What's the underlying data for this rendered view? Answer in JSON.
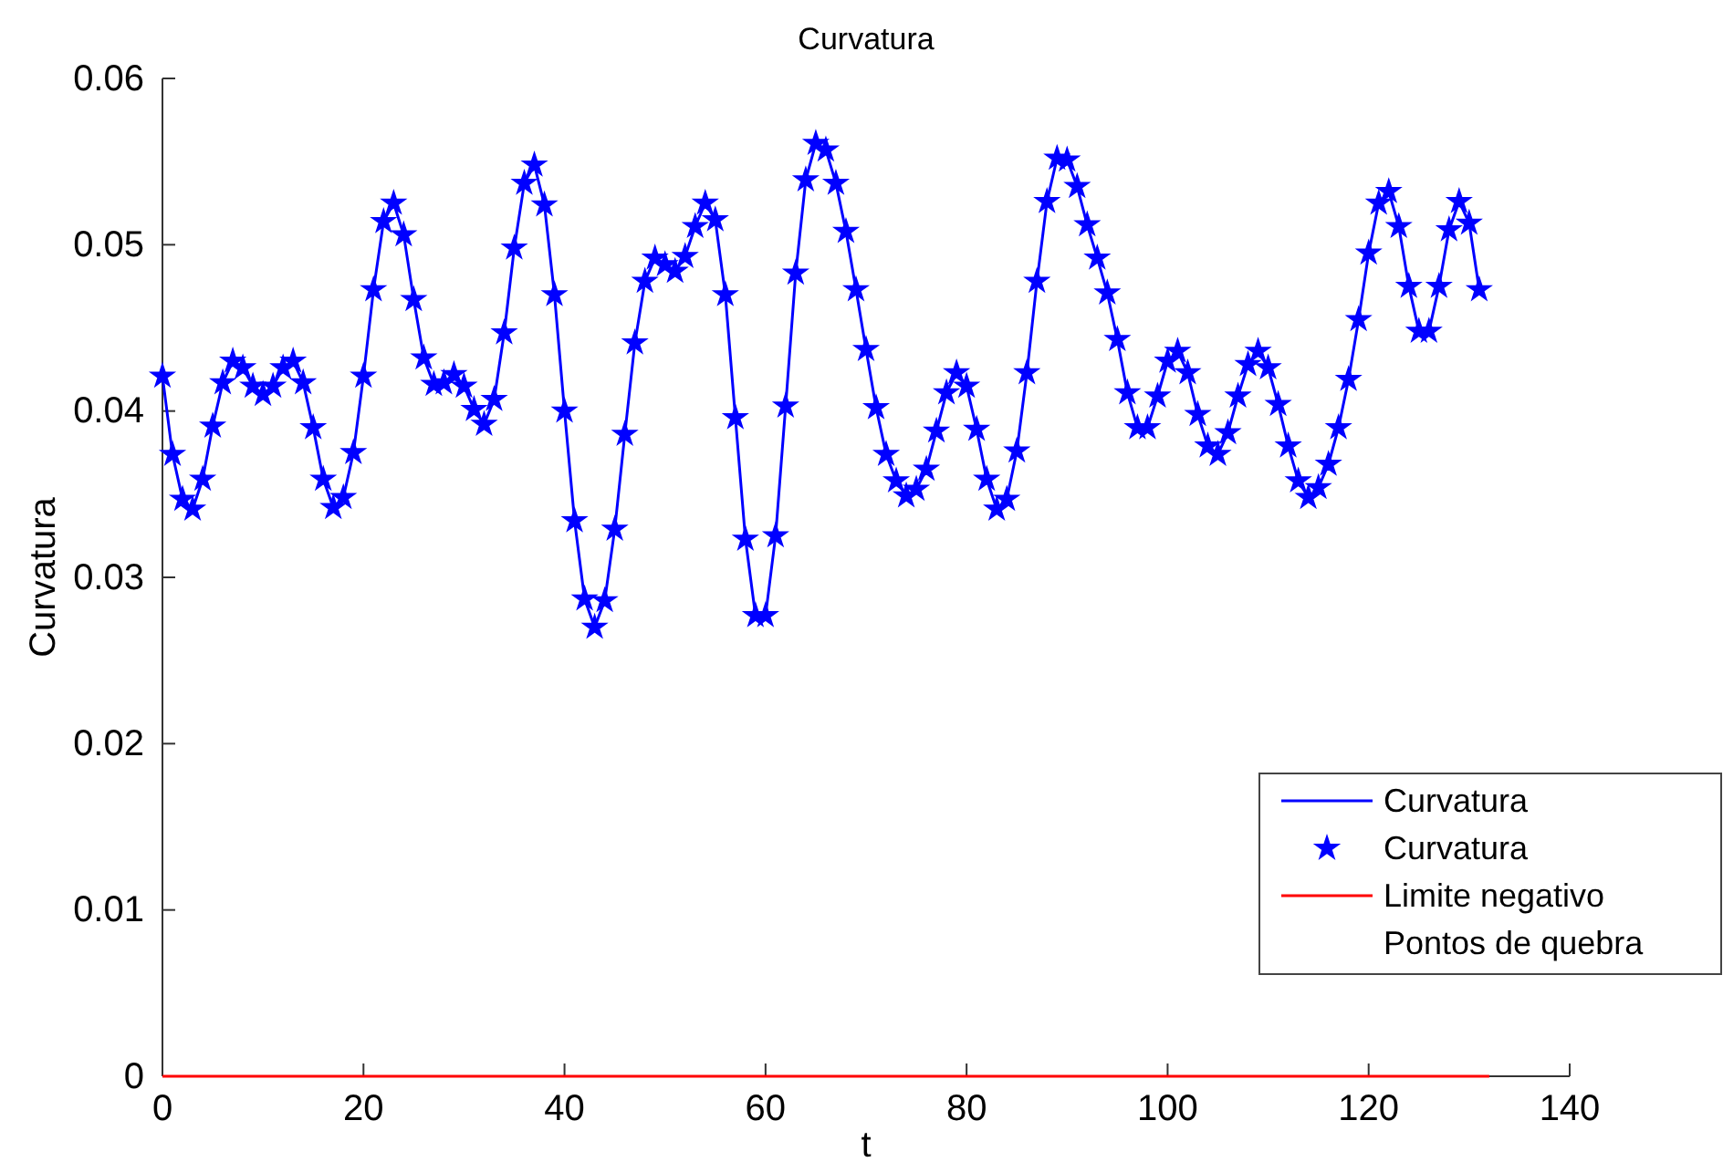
{
  "chart_data": {
    "type": "line",
    "title": "Curvatura",
    "xlabel": "t",
    "ylabel": "Curvatura",
    "xlim": [
      0,
      140
    ],
    "ylim": [
      0,
      0.06
    ],
    "xticks": [
      0,
      20,
      40,
      60,
      80,
      100,
      120,
      140
    ],
    "yticks": [
      0,
      0.01,
      0.02,
      0.03,
      0.04,
      0.05,
      0.06
    ],
    "grid": false,
    "legend": "bottom right",
    "series": [
      {
        "name": "Curvatura",
        "color": "#0000ff",
        "line_style": "solid",
        "marker": "none",
        "x": [
          0,
          1,
          2,
          3,
          4,
          5,
          6,
          7,
          8,
          9,
          10,
          11,
          12,
          13,
          14,
          15,
          16,
          17,
          18,
          19,
          20,
          21,
          22,
          23,
          24,
          25,
          26,
          27,
          28,
          29,
          30,
          31,
          32,
          33,
          34,
          35,
          36,
          37,
          38,
          39,
          40,
          41,
          42,
          43,
          44,
          45,
          46,
          47,
          48,
          49,
          50,
          51,
          52,
          53,
          54,
          55,
          56,
          57,
          58,
          59,
          60,
          61,
          62,
          63,
          64,
          65,
          66,
          67,
          68,
          69,
          70,
          71,
          72,
          73,
          74,
          75,
          76,
          77,
          78,
          79,
          80,
          81,
          82,
          83,
          84,
          85,
          86,
          87,
          88,
          89,
          90,
          91,
          92,
          93,
          94,
          95,
          96,
          97,
          98,
          99,
          100,
          101,
          102,
          103,
          104,
          105,
          106,
          107,
          108,
          109,
          110,
          111,
          112,
          113,
          114,
          115,
          116,
          117,
          118,
          119,
          120,
          121,
          122,
          123,
          124,
          125,
          126,
          127,
          128,
          129,
          130,
          131
        ],
        "values": [
          0.0421,
          0.0374,
          0.0347,
          0.0341,
          0.0359,
          0.0391,
          0.0417,
          0.043,
          0.0426,
          0.0415,
          0.041,
          0.0415,
          0.0426,
          0.043,
          0.0417,
          0.039,
          0.0359,
          0.0342,
          0.0348,
          0.0375,
          0.0421,
          0.0473,
          0.0514,
          0.0525,
          0.0506,
          0.0467,
          0.0432,
          0.0416,
          0.0417,
          0.0422,
          0.0415,
          0.0401,
          0.0392,
          0.0407,
          0.0447,
          0.0498,
          0.0537,
          0.0548,
          0.0524,
          0.047,
          0.04,
          0.0334,
          0.0287,
          0.027,
          0.0286,
          0.0329,
          0.0386,
          0.0441,
          0.0478,
          0.0492,
          0.0488,
          0.0484,
          0.0493,
          0.0511,
          0.0525,
          0.0515,
          0.047,
          0.0396,
          0.0323,
          0.0277,
          0.0277,
          0.0325,
          0.0403,
          0.0483,
          0.0539,
          0.0561,
          0.0557,
          0.0537,
          0.0508,
          0.0473,
          0.0437,
          0.0402,
          0.0374,
          0.0358,
          0.0349,
          0.0353,
          0.0365,
          0.0388,
          0.0411,
          0.0423,
          0.0415,
          0.0389,
          0.0359,
          0.0341,
          0.0347,
          0.0376,
          0.0423,
          0.0478,
          0.0526,
          0.0552,
          0.0551,
          0.0535,
          0.0512,
          0.0492,
          0.0471,
          0.0443,
          0.0411,
          0.039,
          0.039,
          0.0409,
          0.043,
          0.0436,
          0.0423,
          0.0398,
          0.0379,
          0.0374,
          0.0387,
          0.0409,
          0.0428,
          0.0436,
          0.0426,
          0.0404,
          0.0379,
          0.0358,
          0.0348,
          0.0354,
          0.0368,
          0.039,
          0.0419,
          0.0455,
          0.0495,
          0.0525,
          0.0532,
          0.0511,
          0.0475,
          0.0448,
          0.0448,
          0.0475,
          0.0509,
          0.0526,
          0.0513,
          0.0473
        ]
      },
      {
        "name": "Curvatura",
        "type": "scatter",
        "color": "#0000ff",
        "marker": "star",
        "x": [
          0,
          1,
          2,
          3,
          4,
          5,
          6,
          7,
          8,
          9,
          10,
          11,
          12,
          13,
          14,
          15,
          16,
          17,
          18,
          19,
          20,
          21,
          22,
          23,
          24,
          25,
          26,
          27,
          28,
          29,
          30,
          31,
          32,
          33,
          34,
          35,
          36,
          37,
          38,
          39,
          40,
          41,
          42,
          43,
          44,
          45,
          46,
          47,
          48,
          49,
          50,
          51,
          52,
          53,
          54,
          55,
          56,
          57,
          58,
          59,
          60,
          61,
          62,
          63,
          64,
          65,
          66,
          67,
          68,
          69,
          70,
          71,
          72,
          73,
          74,
          75,
          76,
          77,
          78,
          79,
          80,
          81,
          82,
          83,
          84,
          85,
          86,
          87,
          88,
          89,
          90,
          91,
          92,
          93,
          94,
          95,
          96,
          97,
          98,
          99,
          100,
          101,
          102,
          103,
          104,
          105,
          106,
          107,
          108,
          109,
          110,
          111,
          112,
          113,
          114,
          115,
          116,
          117,
          118,
          119,
          120,
          121,
          122,
          123,
          124,
          125,
          126,
          127,
          128,
          129,
          130,
          131
        ],
        "values": [
          0.0421,
          0.0374,
          0.0347,
          0.0341,
          0.0359,
          0.0391,
          0.0417,
          0.043,
          0.0426,
          0.0415,
          0.041,
          0.0415,
          0.0426,
          0.043,
          0.0417,
          0.039,
          0.0359,
          0.0342,
          0.0348,
          0.0375,
          0.0421,
          0.0473,
          0.0514,
          0.0525,
          0.0506,
          0.0467,
          0.0432,
          0.0416,
          0.0417,
          0.0422,
          0.0415,
          0.0401,
          0.0392,
          0.0407,
          0.0447,
          0.0498,
          0.0537,
          0.0548,
          0.0524,
          0.047,
          0.04,
          0.0334,
          0.0287,
          0.027,
          0.0286,
          0.0329,
          0.0386,
          0.0441,
          0.0478,
          0.0492,
          0.0488,
          0.0484,
          0.0493,
          0.0511,
          0.0525,
          0.0515,
          0.047,
          0.0396,
          0.0323,
          0.0277,
          0.0277,
          0.0325,
          0.0403,
          0.0483,
          0.0539,
          0.0561,
          0.0557,
          0.0537,
          0.0508,
          0.0473,
          0.0437,
          0.0402,
          0.0374,
          0.0358,
          0.0349,
          0.0353,
          0.0365,
          0.0388,
          0.0411,
          0.0423,
          0.0415,
          0.0389,
          0.0359,
          0.0341,
          0.0347,
          0.0376,
          0.0423,
          0.0478,
          0.0526,
          0.0552,
          0.0551,
          0.0535,
          0.0512,
          0.0492,
          0.0471,
          0.0443,
          0.0411,
          0.039,
          0.039,
          0.0409,
          0.043,
          0.0436,
          0.0423,
          0.0398,
          0.0379,
          0.0374,
          0.0387,
          0.0409,
          0.0428,
          0.0436,
          0.0426,
          0.0404,
          0.0379,
          0.0358,
          0.0348,
          0.0354,
          0.0368,
          0.039,
          0.0419,
          0.0455,
          0.0495,
          0.0525,
          0.0532,
          0.0511,
          0.0475,
          0.0448,
          0.0448,
          0.0475,
          0.0509,
          0.0526,
          0.0513,
          0.0473
        ]
      },
      {
        "name": "Limite negativo",
        "color": "#ff0000",
        "line_style": "solid",
        "marker": "none",
        "x": [
          0,
          132
        ],
        "values": [
          0,
          0
        ]
      },
      {
        "name": "Pontos de quebra",
        "type": "scatter",
        "marker": "none"
      }
    ]
  }
}
